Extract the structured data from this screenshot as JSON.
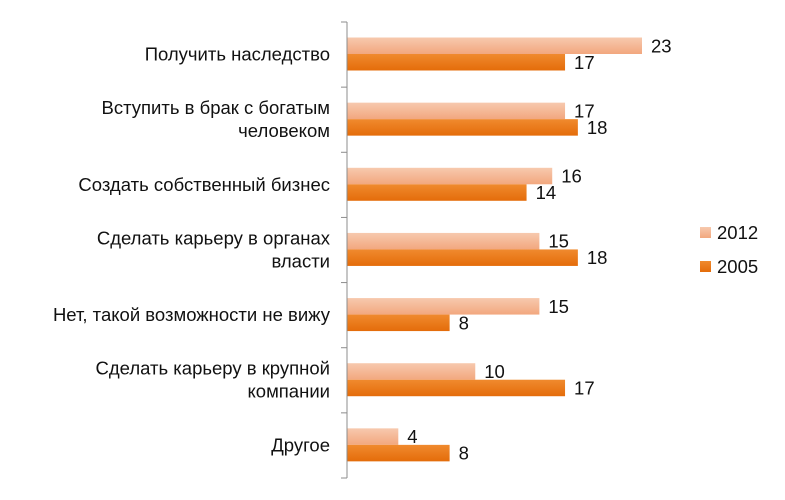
{
  "chart_data": {
    "type": "bar",
    "orientation": "horizontal",
    "categories": [
      [
        "Получить наследство"
      ],
      [
        "Вступить в брак с богатым",
        "человеком"
      ],
      [
        "Создать собственный бизнес"
      ],
      [
        "Сделать карьеру в органах",
        "власти"
      ],
      [
        "Нет, такой возможности не вижу"
      ],
      [
        "Сделать карьеру в крупной",
        "компании"
      ],
      [
        "Другое"
      ]
    ],
    "series": [
      {
        "name": "2012",
        "values": [
          23,
          17,
          16,
          15,
          15,
          10,
          4
        ],
        "color": "#F2A77E",
        "gradient_end": "#F7C9AE"
      },
      {
        "name": "2005",
        "values": [
          17,
          18,
          14,
          18,
          8,
          17,
          8
        ],
        "color": "#E46C0A",
        "gradient_end": "#F08A2E"
      }
    ],
    "xlim": [
      0,
      23
    ],
    "grid": false,
    "legend_position": "right"
  }
}
